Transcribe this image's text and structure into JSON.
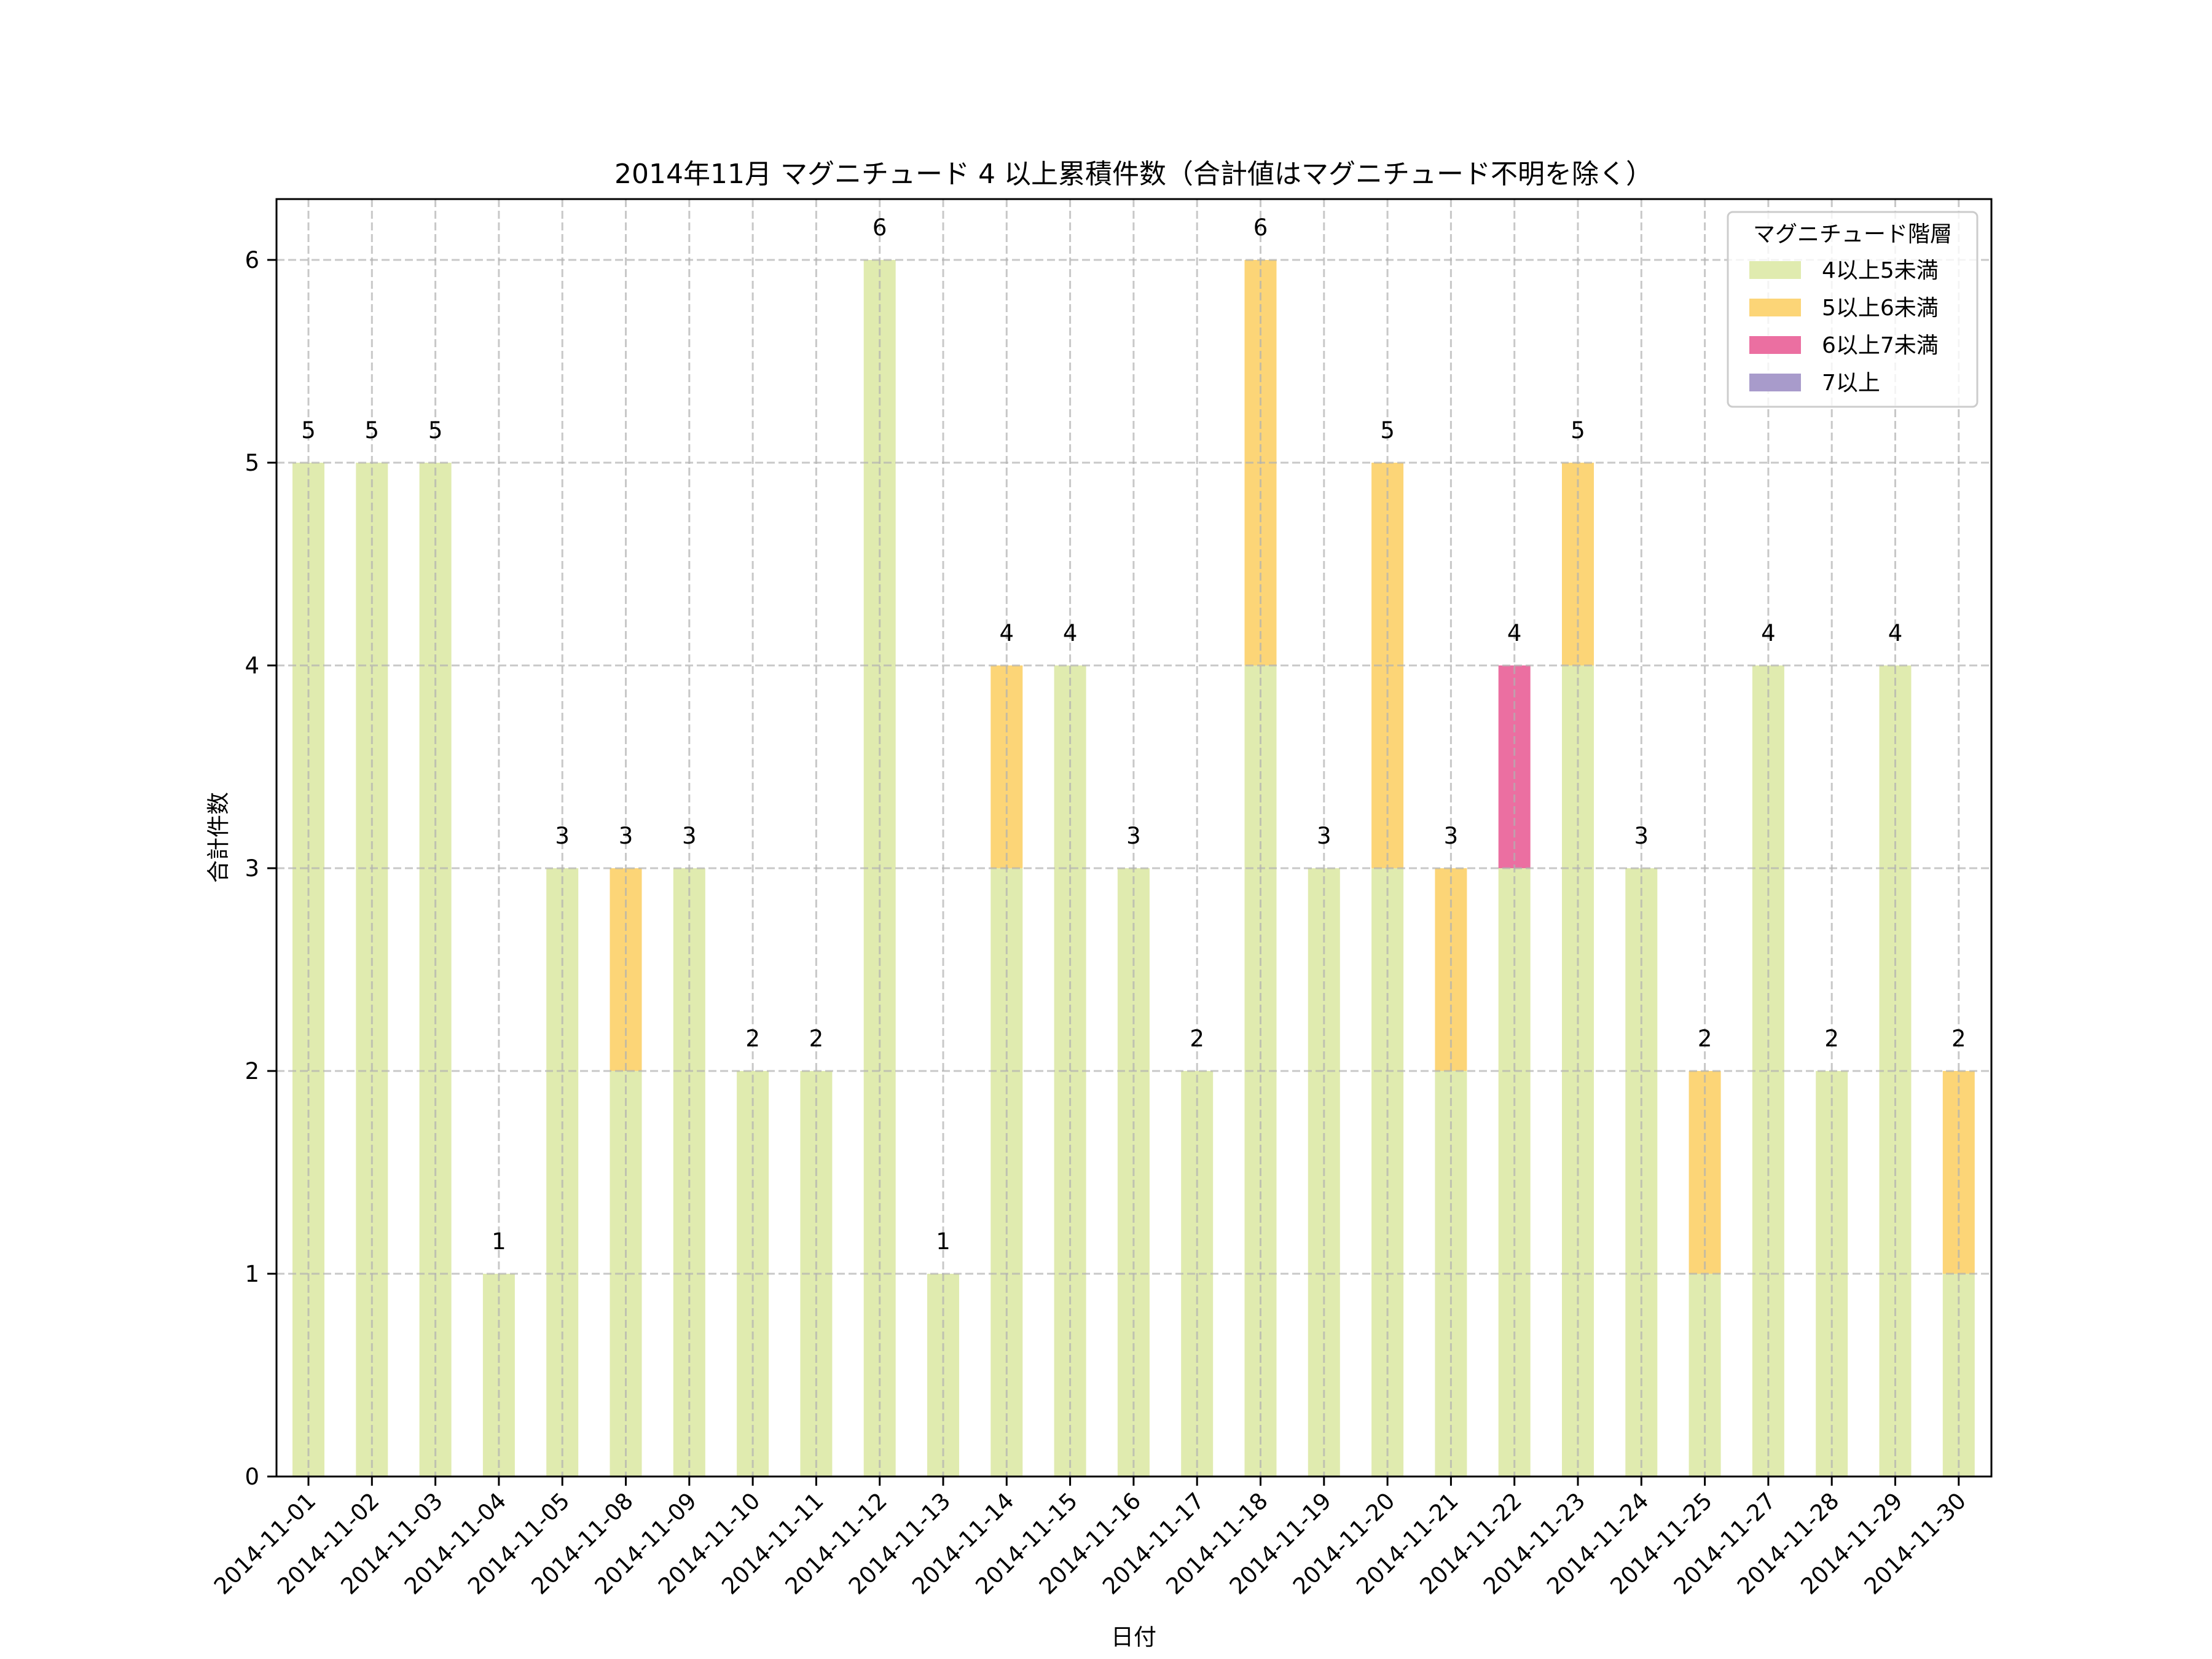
{
  "chart_data": {
    "type": "bar",
    "stacked": true,
    "title": "2014年11月 マグニチュード 4 以上累積件数（合計値はマグニチュード不明を除く）",
    "xlabel": "日付",
    "ylabel": "合計件数",
    "ylim": [
      0,
      6.3
    ],
    "yticks": [
      0,
      1,
      2,
      3,
      4,
      5,
      6
    ],
    "grid": true,
    "legend_position": "top-right",
    "legend_title": "マグニチュード階層",
    "categories": [
      "2014-11-01",
      "2014-11-02",
      "2014-11-03",
      "2014-11-04",
      "2014-11-05",
      "2014-11-08",
      "2014-11-09",
      "2014-11-10",
      "2014-11-11",
      "2014-11-12",
      "2014-11-13",
      "2014-11-14",
      "2014-11-15",
      "2014-11-16",
      "2014-11-17",
      "2014-11-18",
      "2014-11-19",
      "2014-11-20",
      "2014-11-21",
      "2014-11-22",
      "2014-11-23",
      "2014-11-24",
      "2014-11-25",
      "2014-11-27",
      "2014-11-28",
      "2014-11-29",
      "2014-11-30"
    ],
    "series": [
      {
        "name": "4以上5未満",
        "color": "#e0ebaf",
        "values": [
          5,
          5,
          5,
          1,
          3,
          2,
          3,
          2,
          2,
          6,
          1,
          3,
          4,
          3,
          2,
          4,
          3,
          3,
          2,
          3,
          4,
          3,
          1,
          4,
          2,
          4,
          1
        ]
      },
      {
        "name": "5以上6未満",
        "color": "#fcd577",
        "values": [
          0,
          0,
          0,
          0,
          0,
          1,
          0,
          0,
          0,
          0,
          0,
          1,
          0,
          0,
          0,
          2,
          0,
          2,
          1,
          0,
          1,
          0,
          1,
          0,
          0,
          0,
          1
        ]
      },
      {
        "name": "6以上7未満",
        "color": "#eb6fa1",
        "values": [
          0,
          0,
          0,
          0,
          0,
          0,
          0,
          0,
          0,
          0,
          0,
          0,
          0,
          0,
          0,
          0,
          0,
          0,
          0,
          1,
          0,
          0,
          0,
          0,
          0,
          0,
          0
        ]
      },
      {
        "name": "7以上",
        "color": "#a89bcb",
        "values": [
          0,
          0,
          0,
          0,
          0,
          0,
          0,
          0,
          0,
          0,
          0,
          0,
          0,
          0,
          0,
          0,
          0,
          0,
          0,
          0,
          0,
          0,
          0,
          0,
          0,
          0,
          0
        ]
      }
    ],
    "totals": [
      5,
      5,
      5,
      1,
      3,
      3,
      3,
      2,
      2,
      6,
      1,
      4,
      4,
      3,
      2,
      6,
      3,
      5,
      3,
      4,
      5,
      3,
      2,
      4,
      2,
      4,
      2
    ]
  }
}
